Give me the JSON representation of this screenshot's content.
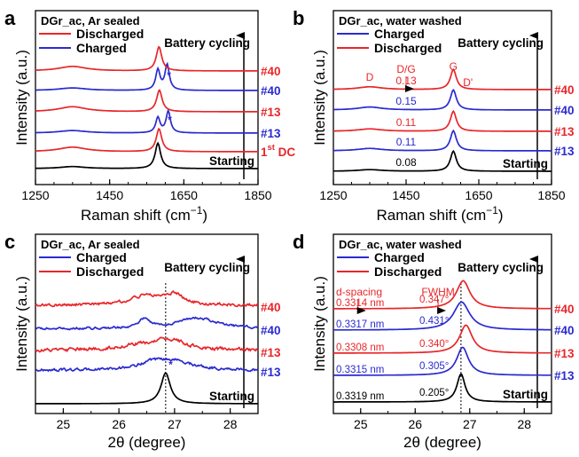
{
  "figure": "Raman spectra and XRD patterns of DGr_ac electrodes during battery cycling",
  "chart_data": [
    {
      "panel": "a",
      "type": "line",
      "stacked_offsets": true,
      "title": "DGr_ac, Ar sealed",
      "xlabel": "Raman shift (cm⁻¹)",
      "xlabel_main": "Raman shift (cm",
      "xlabel_sup": "−1",
      "xlabel_tail": ")",
      "ylabel": "Intensity (a.u.)",
      "xlim": [
        1250,
        1850
      ],
      "xticks": [
        "1250",
        "1450",
        "1650",
        "1850"
      ],
      "legend": [
        {
          "name": "Discharged",
          "color": "#e8262a"
        },
        {
          "name": "Charged",
          "color": "#2a2ad0"
        }
      ],
      "arrow_label": "Battery cycling",
      "series": [
        {
          "name": "Starting",
          "label": "Starting",
          "label_color": "#000000",
          "color": "#000000",
          "peaks": [
            {
              "x": 1580,
              "h": 1.0,
              "w": 9
            },
            {
              "x": 1350,
              "h": 0.08,
              "w": 40
            }
          ]
        },
        {
          "name": "1st DC",
          "label_main": "1",
          "label_sup": "st",
          "label_tail": " DC",
          "label_color": "#e8262a",
          "color": "#e8262a",
          "peaks": [
            {
              "x": 1583,
              "h": 0.9,
              "w": 9
            },
            {
              "x": 1350,
              "h": 0.18,
              "w": 45
            }
          ]
        },
        {
          "name": "#13 charged",
          "label": "#13",
          "label_color": "#2a2ad0",
          "color": "#2a2ad0",
          "peaks": [
            {
              "x": 1580,
              "h": 0.6,
              "w": 7
            },
            {
              "x": 1608,
              "h": 0.85,
              "w": 7
            },
            {
              "x": 1350,
              "h": 0.1,
              "w": 45
            }
          ]
        },
        {
          "name": "#13 discharged",
          "label": "#13",
          "label_color": "#e8262a",
          "color": "#e8262a",
          "peaks": [
            {
              "x": 1584,
              "h": 0.85,
              "w": 9
            },
            {
              "x": 1350,
              "h": 0.2,
              "w": 45
            }
          ]
        },
        {
          "name": "#40 charged",
          "label": "#40",
          "label_color": "#2a2ad0",
          "color": "#2a2ad0",
          "peaks": [
            {
              "x": 1580,
              "h": 0.8,
              "w": 7
            },
            {
              "x": 1605,
              "h": 1.0,
              "w": 7
            },
            {
              "x": 1350,
              "h": 0.1,
              "w": 45
            }
          ]
        },
        {
          "name": "#40 discharged",
          "label": "#40",
          "label_color": "#e8262a",
          "color": "#e8262a",
          "peaks": [
            {
              "x": 1583,
              "h": 0.95,
              "w": 9
            },
            {
              "x": 1350,
              "h": 0.18,
              "w": 45
            }
          ]
        }
      ],
      "annotations": [
        "*",
        "*"
      ]
    },
    {
      "panel": "b",
      "type": "line",
      "stacked_offsets": true,
      "title": "DGr_ac, water washed",
      "xlabel": "Raman shift (cm⁻¹)",
      "xlabel_main": "Raman shift (cm",
      "xlabel_sup": "−1",
      "xlabel_tail": ")",
      "ylabel": "Intensity (a.u.)",
      "xlim": [
        1250,
        1850
      ],
      "xticks": [
        "1250",
        "1450",
        "1650",
        "1850"
      ],
      "legend": [
        {
          "name": "Charged",
          "color": "#2a2ad0"
        },
        {
          "name": "Discharged",
          "color": "#e8262a"
        }
      ],
      "arrow_label": "Battery cycling",
      "peak_labels": {
        "D": "D",
        "DG": "D/G",
        "G": "G",
        "Dp": "D'"
      },
      "series": [
        {
          "name": "Starting",
          "label": "Starting",
          "label_color": "#000000",
          "color": "#000000",
          "DG_ratio": "0.08",
          "peaks": [
            {
              "x": 1580,
              "h": 1.0,
              "w": 10
            },
            {
              "x": 1350,
              "h": 0.08,
              "w": 40
            }
          ]
        },
        {
          "name": "#13 charged",
          "label": "#13",
          "label_color": "#2a2ad0",
          "color": "#2a2ad0",
          "DG_ratio": "0.11",
          "peaks": [
            {
              "x": 1580,
              "h": 1.0,
              "w": 10
            },
            {
              "x": 1350,
              "h": 0.12,
              "w": 40
            }
          ]
        },
        {
          "name": "#13 discharged",
          "label": "#13",
          "label_color": "#e8262a",
          "color": "#e8262a",
          "DG_ratio": "0.11",
          "peaks": [
            {
              "x": 1580,
              "h": 1.0,
              "w": 10
            },
            {
              "x": 1350,
              "h": 0.12,
              "w": 40
            }
          ]
        },
        {
          "name": "#40 charged",
          "label": "#40",
          "label_color": "#2a2ad0",
          "color": "#2a2ad0",
          "DG_ratio": "0.15",
          "peaks": [
            {
              "x": 1580,
              "h": 1.0,
              "w": 10
            },
            {
              "x": 1350,
              "h": 0.15,
              "w": 40
            }
          ]
        },
        {
          "name": "#40 discharged",
          "label": "#40",
          "label_color": "#e8262a",
          "color": "#e8262a",
          "DG_ratio": "0.13",
          "peaks": [
            {
              "x": 1580,
              "h": 1.0,
              "w": 10
            },
            {
              "x": 1350,
              "h": 0.14,
              "w": 40
            }
          ]
        }
      ]
    },
    {
      "panel": "c",
      "type": "line",
      "stacked_offsets": true,
      "title": "DGr_ac, Ar sealed",
      "xlabel": "2θ (degree)",
      "ylabel": "Intensity (a.u.)",
      "xlim": [
        24.5,
        28.5
      ],
      "xticks": [
        "25",
        "26",
        "27",
        "28"
      ],
      "xtick_values": [
        25,
        26,
        27,
        28
      ],
      "reference_line_x": 26.84,
      "legend": [
        {
          "name": "Charged",
          "color": "#2a2ad0"
        },
        {
          "name": "Discharged",
          "color": "#e8262a"
        }
      ],
      "arrow_label": "Battery cycling",
      "series": [
        {
          "name": "Starting",
          "label": "Starting",
          "label_color": "#000000",
          "color": "#000000",
          "noise": 0.0,
          "peaks": [
            {
              "x": 26.84,
              "h": 1.0,
              "w": 0.1
            }
          ]
        },
        {
          "name": "#13 charged",
          "label": "#13",
          "label_color": "#2a2ad0",
          "color": "#2a2ad0",
          "noise": 0.12,
          "peaks": [
            {
              "x": 26.6,
              "h": 0.3,
              "w": 0.3
            },
            {
              "x": 27.0,
              "h": 0.45,
              "w": 0.4
            }
          ]
        },
        {
          "name": "#13 discharged",
          "label": "#13",
          "label_color": "#e8262a",
          "color": "#e8262a",
          "noise": 0.15,
          "peaks": [
            {
              "x": 26.9,
              "h": 0.55,
              "w": 0.35
            },
            {
              "x": 26.3,
              "h": 0.2,
              "w": 0.4
            }
          ]
        },
        {
          "name": "#40 charged",
          "label": "#40",
          "label_color": "#2a2ad0",
          "color": "#2a2ad0",
          "noise": 0.1,
          "peaks": [
            {
              "x": 26.45,
              "h": 0.45,
              "w": 0.12
            },
            {
              "x": 27.4,
              "h": 0.55,
              "w": 0.45
            }
          ]
        },
        {
          "name": "#40 discharged",
          "label": "#40",
          "label_color": "#e8262a",
          "color": "#e8262a",
          "noise": 0.13,
          "peaks": [
            {
              "x": 26.5,
              "h": 0.5,
              "w": 0.35
            },
            {
              "x": 27.0,
              "h": 0.5,
              "w": 0.2
            }
          ]
        }
      ],
      "annotations": [
        "*"
      ]
    },
    {
      "panel": "d",
      "type": "line",
      "stacked_offsets": true,
      "title": "DGr_ac, water washed",
      "xlabel": "2θ (degree)",
      "ylabel": "Intensity (a.u.)",
      "xlim": [
        24.5,
        28.5
      ],
      "xticks": [
        "25",
        "26",
        "27",
        "28"
      ],
      "xtick_values": [
        25,
        26,
        27,
        28
      ],
      "reference_line_x": 26.84,
      "legend": [
        {
          "name": "Charged",
          "color": "#2a2ad0"
        },
        {
          "name": "Discharged",
          "color": "#e8262a"
        }
      ],
      "arrow_label": "Battery cycling",
      "col_labels": {
        "dspacing": "d-spacing",
        "fwhm": "FWHM"
      },
      "series": [
        {
          "name": "Starting",
          "label": "Starting",
          "label_color": "#000000",
          "color": "#000000",
          "d_spacing": "0.3319 nm",
          "fwhm": "0.205°",
          "peaks": [
            {
              "x": 26.84,
              "h": 1.0,
              "w": 0.09
            }
          ]
        },
        {
          "name": "#13 charged",
          "label": "#13",
          "label_color": "#2a2ad0",
          "color": "#2a2ad0",
          "d_spacing": "0.3315 nm",
          "fwhm": "0.305°",
          "peaks": [
            {
              "x": 26.87,
              "h": 1.0,
              "w": 0.13
            }
          ]
        },
        {
          "name": "#13 discharged",
          "label": "#13",
          "label_color": "#e8262a",
          "color": "#e8262a",
          "d_spacing": "0.3308 nm",
          "fwhm": "0.340°",
          "peaks": [
            {
              "x": 26.93,
              "h": 1.0,
              "w": 0.14
            }
          ]
        },
        {
          "name": "#40 charged",
          "label": "#40",
          "label_color": "#2a2ad0",
          "color": "#2a2ad0",
          "d_spacing": "0.3317 nm",
          "fwhm": "0.431°",
          "peaks": [
            {
              "x": 26.85,
              "h": 1.0,
              "w": 0.18
            }
          ]
        },
        {
          "name": "#40 discharged",
          "label": "#40",
          "label_color": "#e8262a",
          "color": "#e8262a",
          "d_spacing": "0.3314 nm",
          "fwhm": "0.347°",
          "peaks": [
            {
              "x": 26.88,
              "h": 1.0,
              "w": 0.15
            }
          ]
        }
      ]
    }
  ]
}
